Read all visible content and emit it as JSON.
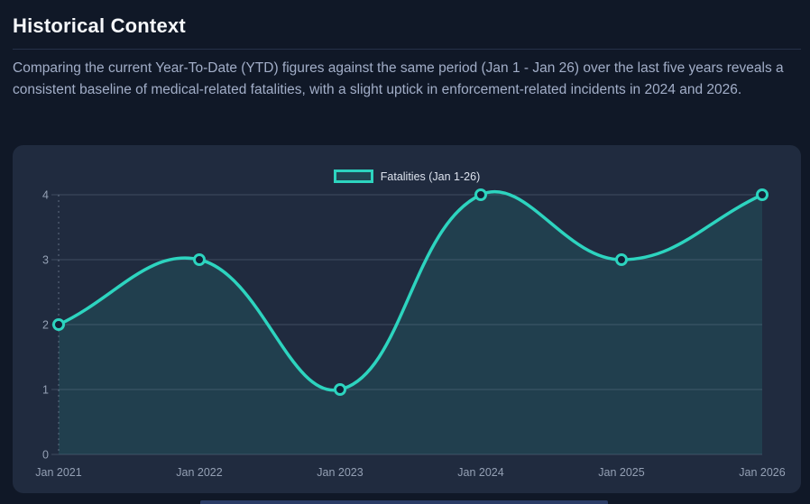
{
  "page": {
    "title": "Historical Context",
    "description": "Comparing the current Year-To-Date (YTD) figures against the same period (Jan 1 - Jan 26) over the last five years reveals a consistent baseline of medical-related fatalities, with a slight uptick in enforcement-related incidents in 2024 and 2026."
  },
  "colors": {
    "page_bg": "#101827",
    "card_bg": "#202b3f",
    "accent_teal": "#2dd4bf",
    "area_fill": "rgba(45,212,191,0.12)",
    "gridline": "rgba(148,163,184,0.28)",
    "axis_dotted": "rgba(148,163,184,0.55)",
    "tick_label": "#94a0b4",
    "point_fill": "#122036"
  },
  "chart_data": {
    "type": "line",
    "title": "",
    "legend": [
      {
        "label": "Fatalities (Jan 1-26)"
      }
    ],
    "legend_position": "top-center",
    "categories": [
      "Jan 2021",
      "Jan 2022",
      "Jan 2023",
      "Jan 2024",
      "Jan 2025",
      "Jan 2026"
    ],
    "series": [
      {
        "name": "Fatalities (Jan 1-26)",
        "values": [
          2,
          3,
          1,
          4,
          3,
          4
        ]
      }
    ],
    "xlabel": "",
    "ylabel": "",
    "ylim": [
      0,
      4
    ],
    "yticks": [
      0,
      1,
      2,
      3,
      4
    ],
    "grid": true,
    "smooth": true,
    "area_fill": true
  }
}
